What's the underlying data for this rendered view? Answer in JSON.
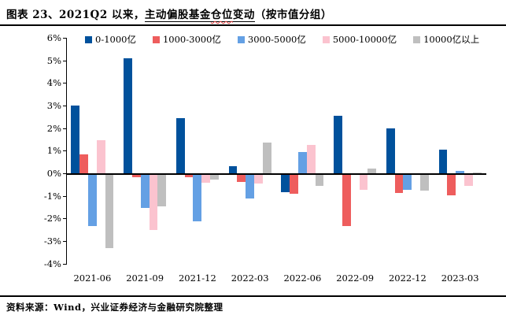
{
  "title": {
    "prefix": "图表 23、2021Q2 以来，",
    "underline_pre": "主动偏股基金",
    "underline_wavy": "仓位",
    "underline_post": "变动",
    "suffix": "（按市值分组）"
  },
  "chart_data": {
    "type": "bar",
    "title": "主动偏股基金仓位变动（按市值分组）",
    "categories": [
      "2021-06",
      "2021-09",
      "2021-12",
      "2022-03",
      "2022-06",
      "2022-09",
      "2022-12",
      "2023-03"
    ],
    "series": [
      {
        "name": "0-1000亿",
        "color": "#00519C",
        "values": [
          3.0,
          5.1,
          2.45,
          0.3,
          -0.75,
          2.55,
          2.0,
          1.05
        ]
      },
      {
        "name": "1000-3000亿",
        "color": "#EE5D5D",
        "values": [
          0.85,
          -0.1,
          -0.1,
          -0.3,
          -0.85,
          -2.25,
          -0.8,
          -0.9
        ]
      },
      {
        "name": "3000-5000亿",
        "color": "#64A0E4",
        "values": [
          -2.25,
          -1.45,
          -2.05,
          -1.05,
          0.95,
          0.0,
          -0.65,
          0.1
        ]
      },
      {
        "name": "5000-10000亿",
        "color": "#FBC3CF",
        "values": [
          1.45,
          -2.45,
          -0.35,
          -0.4,
          1.25,
          -0.65,
          0.0,
          -0.5
        ]
      },
      {
        "name": "10000亿以上",
        "color": "#BFBFBF",
        "values": [
          -3.25,
          -1.4,
          -0.2,
          1.35,
          -0.5,
          0.2,
          -0.7,
          0.05
        ]
      }
    ],
    "ylim": [
      -4,
      6
    ],
    "ytick_step": 1,
    "y_tick_labels": [
      "6%",
      "5%",
      "4%",
      "3%",
      "2%",
      "1%",
      "0%",
      "-1%",
      "-2%",
      "-3%",
      "-4%"
    ],
    "grid": false,
    "legend_position": "top"
  },
  "footer": {
    "source": "资料来源：Wind，兴业证券经济与金融研究院整理"
  }
}
